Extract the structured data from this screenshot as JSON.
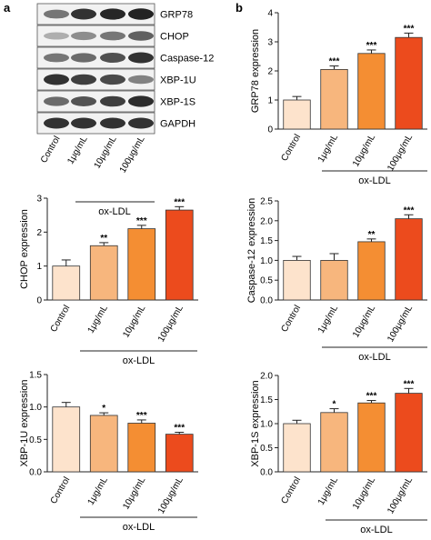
{
  "panel_labels": {
    "a": "a",
    "b": "b"
  },
  "blot": {
    "rows": [
      "GRP78",
      "CHOP",
      "Caspase-12",
      "XBP-1U",
      "XBP-1S",
      "GAPDH"
    ],
    "intensity": [
      [
        0.55,
        0.85,
        0.9,
        0.92
      ],
      [
        0.3,
        0.45,
        0.55,
        0.65
      ],
      [
        0.55,
        0.6,
        0.72,
        0.85
      ],
      [
        0.85,
        0.8,
        0.75,
        0.5
      ],
      [
        0.6,
        0.7,
        0.8,
        0.88
      ],
      [
        0.85,
        0.85,
        0.85,
        0.85
      ]
    ],
    "lanes": [
      "Control",
      "1μg/mL",
      "10μg/mL",
      "100μg/mL"
    ],
    "group_label": "ox-LDL"
  },
  "colors": {
    "bars": [
      "#fde3cc",
      "#f7b67d",
      "#f48e33",
      "#ec4b1d"
    ],
    "axis": "#222222",
    "blot_bg": "#f2f2f2",
    "band": "#111111"
  },
  "chart_data": [
    {
      "type": "bar",
      "categories": [
        "Control",
        "1μg/mL",
        "10μg/mL",
        "100μg/mL"
      ],
      "group_label": "ox-LDL",
      "ylabel": "GRP78 expression",
      "ylim": [
        0,
        4
      ],
      "yticks": [
        "0",
        "1",
        "2",
        "3",
        "4"
      ],
      "values": [
        1.0,
        2.05,
        2.6,
        3.15
      ],
      "errors": [
        0.12,
        0.12,
        0.12,
        0.15
      ],
      "significance": [
        "",
        "***",
        "***",
        "***"
      ]
    },
    {
      "type": "bar",
      "categories": [
        "Control",
        "1μg/mL",
        "10μg/mL",
        "100μg/mL"
      ],
      "group_label": "ox-LDL",
      "ylabel": "CHOP expression",
      "ylim": [
        0,
        3
      ],
      "yticks": [
        "0",
        "1",
        "2",
        "3"
      ],
      "values": [
        1.0,
        1.6,
        2.1,
        2.65
      ],
      "errors": [
        0.18,
        0.09,
        0.1,
        0.1
      ],
      "significance": [
        "",
        "**",
        "***",
        "***"
      ]
    },
    {
      "type": "bar",
      "categories": [
        "Control",
        "1μg/mL",
        "10μg/mL",
        "100μg/mL"
      ],
      "group_label": "ox-LDL",
      "ylabel": "Caspase-12 expression",
      "ylim": [
        0,
        2.5
      ],
      "yticks": [
        "0.0",
        "0.5",
        "1.0",
        "1.5",
        "2.0",
        "2.5"
      ],
      "values": [
        1.0,
        1.0,
        1.47,
        2.05
      ],
      "errors": [
        0.1,
        0.17,
        0.07,
        0.1
      ],
      "significance": [
        "",
        "",
        "**",
        "***"
      ]
    },
    {
      "type": "bar",
      "categories": [
        "Control",
        "1μg/mL",
        "10μg/mL",
        "100μg/mL"
      ],
      "group_label": "ox-LDL",
      "ylabel": "XBP-1U expression",
      "ylim": [
        0,
        1.5
      ],
      "yticks": [
        "0.0",
        "0.5",
        "1.0",
        "1.5"
      ],
      "values": [
        1.0,
        0.87,
        0.75,
        0.58
      ],
      "errors": [
        0.07,
        0.04,
        0.05,
        0.03
      ],
      "significance": [
        "",
        "*",
        "***",
        "***"
      ]
    },
    {
      "type": "bar",
      "categories": [
        "Control",
        "1μg/mL",
        "10μg/mL",
        "100μg/mL"
      ],
      "group_label": "ox-LDL",
      "ylabel": "XBP-1S expression",
      "ylim": [
        0,
        2.0
      ],
      "yticks": [
        "0.0",
        "0.5",
        "1.0",
        "1.5",
        "2.0"
      ],
      "values": [
        1.0,
        1.23,
        1.43,
        1.63
      ],
      "errors": [
        0.07,
        0.08,
        0.05,
        0.1
      ],
      "significance": [
        "",
        "*",
        "***",
        "***"
      ]
    }
  ]
}
